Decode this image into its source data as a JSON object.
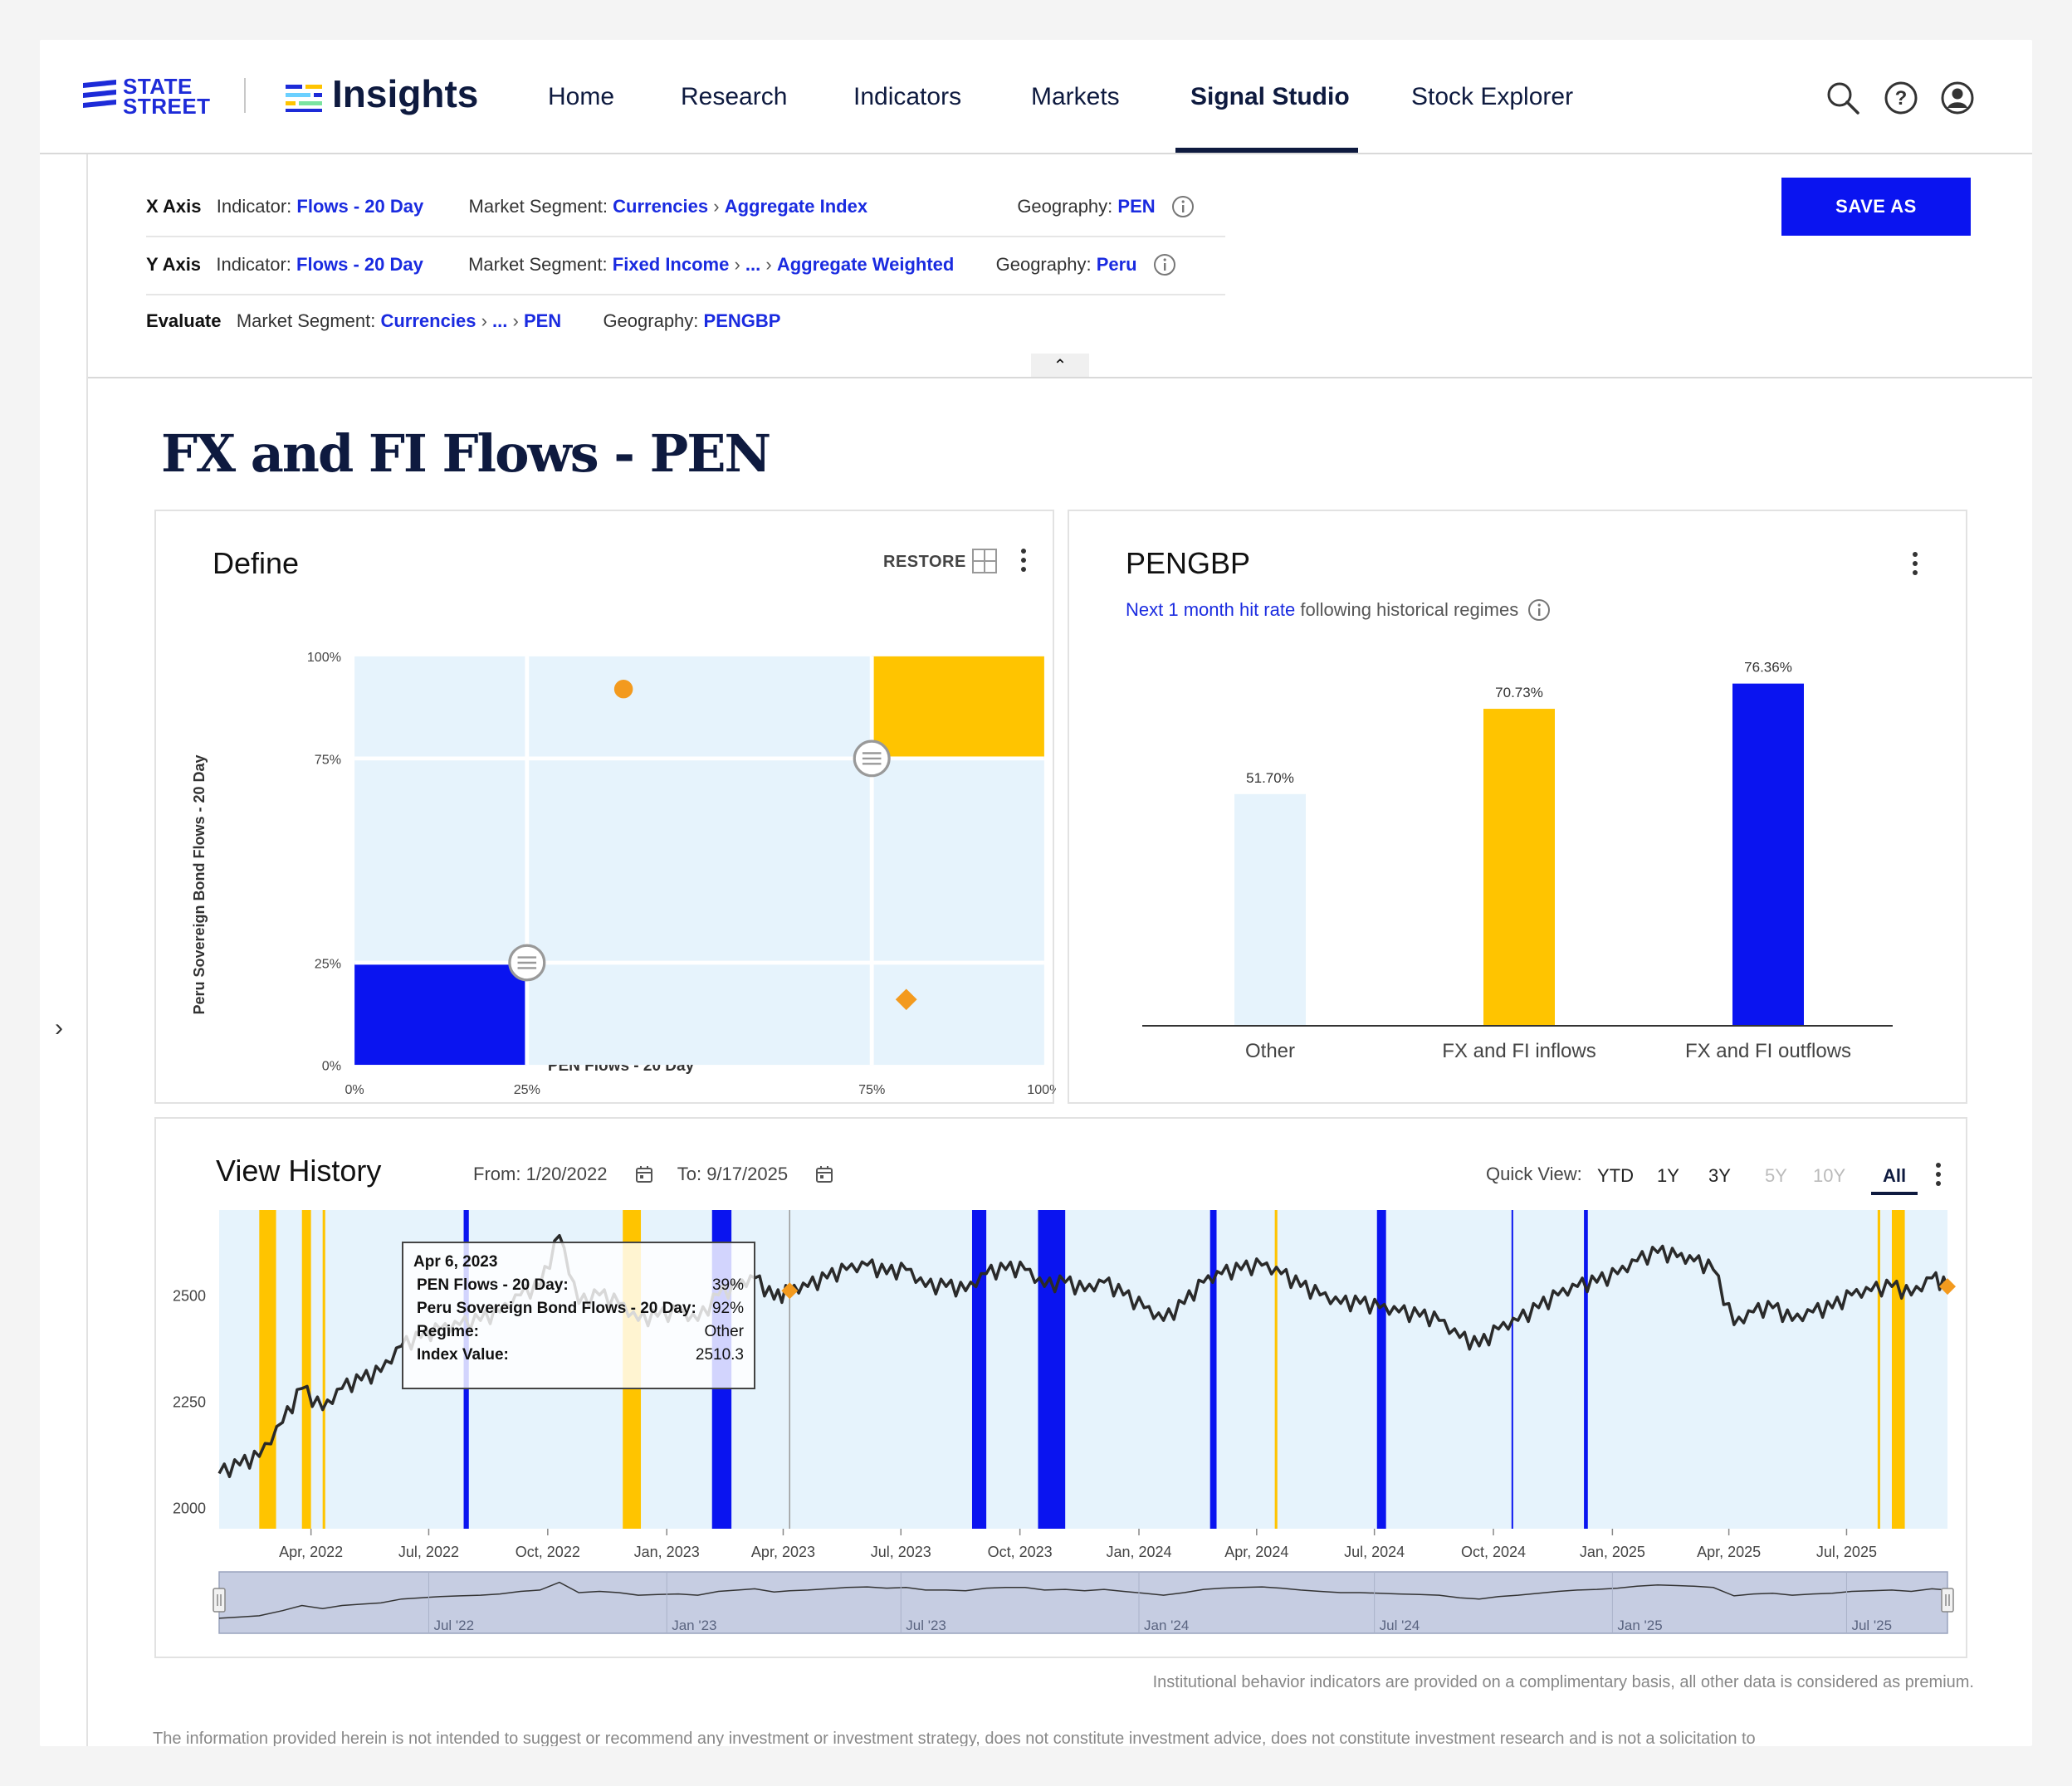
{
  "brand": {
    "company": [
      "STATE",
      "STREET"
    ],
    "product": "Insights"
  },
  "nav": {
    "items": [
      "Home",
      "Research",
      "Indicators",
      "Markets",
      "Signal Studio",
      "Stock Explorer"
    ],
    "active": "Signal Studio"
  },
  "config": {
    "x_axis": {
      "key": "X Axis",
      "indicator_label": "Indicator:",
      "indicator": "Flows - 20 Day",
      "segment_label": "Market Segment:",
      "segment": [
        "Currencies",
        "Aggregate Index"
      ],
      "geo_label": "Geography:",
      "geo": "PEN"
    },
    "y_axis": {
      "key": "Y Axis",
      "indicator_label": "Indicator:",
      "indicator": "Flows - 20 Day",
      "segment_label": "Market Segment:",
      "segment": [
        "Fixed Income",
        "...",
        "Aggregate Weighted"
      ],
      "geo_label": "Geography:",
      "geo": "Peru"
    },
    "evaluate": {
      "key": "Evaluate",
      "segment_label": "Market Segment:",
      "segment": [
        "Currencies",
        "...",
        "PEN"
      ],
      "geo_label": "Geography:",
      "geo": "PENGBP"
    },
    "save_label": "SAVE AS",
    "collapse_glyph": "⌃"
  },
  "page_title": "FX and FI Flows - PEN",
  "define": {
    "title": "Define",
    "restore_label": "RESTORE",
    "ylabel": "Peru Sovereign Bond Flows - 20 Day",
    "xlabel": "PEN Flows - 20 Day",
    "y_ticks": [
      "100%",
      "75%",
      "25%",
      "0%"
    ],
    "x_ticks": [
      "0%",
      "25%",
      "75%",
      "100%"
    ],
    "thresholds": {
      "x_low": 25,
      "x_high": 75,
      "y_low": 25,
      "y_high": 75
    },
    "points": [
      {
        "x": 39,
        "y": 92,
        "shape": "circle"
      },
      {
        "x": 80,
        "y": 16,
        "shape": "diamond"
      }
    ],
    "colors": {
      "inflow": "#ffc400",
      "outflow": "#0a14f0",
      "other": "#e6f3fc",
      "point": "#f39a1e"
    }
  },
  "hitrate": {
    "title": "PENGBP",
    "subtitle_link": "Next 1 month hit rate",
    "subtitle_rest": "following historical regimes"
  },
  "chart_data": [
    {
      "type": "bar",
      "categories": [
        "Other",
        "FX and FI inflows",
        "FX and FI outflows"
      ],
      "values": [
        51.7,
        70.73,
        76.36
      ],
      "value_labels": [
        "51.70%",
        "70.73%",
        "76.36%"
      ],
      "colors": [
        "#e6f3fc",
        "#ffc400",
        "#0a14f0"
      ],
      "ylim": [
        0,
        100
      ]
    },
    {
      "type": "line",
      "title": "View History",
      "y_ticks": [
        2000,
        2250,
        2500
      ],
      "ylim": [
        1950,
        2700
      ],
      "x_ticks": [
        "Apr, 2022",
        "Jul, 2022",
        "Oct, 2022",
        "Jan, 2023",
        "Apr, 2023",
        "Jul, 2023",
        "Oct, 2023",
        "Jan, 2024",
        "Apr, 2024",
        "Jul, 2024",
        "Oct, 2024",
        "Jan, 2025",
        "Apr, 2025",
        "Jul, 2025"
      ],
      "xlim": [
        "2022-01-20",
        "2025-09-17"
      ],
      "series": [
        {
          "x": [
            "2022-01-20",
            "2022-02-05",
            "2022-02-20",
            "2022-03-10",
            "2022-03-25",
            "2022-04-10",
            "2022-04-25",
            "2022-05-10",
            "2022-05-25",
            "2022-06-10",
            "2022-06-25",
            "2022-07-10",
            "2022-07-25",
            "2022-08-10",
            "2022-08-25",
            "2022-09-10",
            "2022-09-25",
            "2022-10-10",
            "2022-10-25",
            "2022-11-10",
            "2022-11-25",
            "2022-12-10",
            "2022-12-25",
            "2023-01-10",
            "2023-01-25",
            "2023-02-10",
            "2023-02-25",
            "2023-03-10",
            "2023-03-25",
            "2023-04-06",
            "2023-04-20",
            "2023-05-05",
            "2023-05-20",
            "2023-06-05",
            "2023-06-20",
            "2023-07-05",
            "2023-07-20",
            "2023-08-05",
            "2023-08-20",
            "2023-09-05",
            "2023-09-20",
            "2023-10-05",
            "2023-10-20",
            "2023-11-05",
            "2023-11-20",
            "2023-12-05",
            "2023-12-20",
            "2024-01-05",
            "2024-01-20",
            "2024-02-05",
            "2024-02-20",
            "2024-03-05",
            "2024-03-20",
            "2024-04-05",
            "2024-04-20",
            "2024-05-05",
            "2024-05-20",
            "2024-06-05",
            "2024-06-20",
            "2024-07-05",
            "2024-07-20",
            "2024-08-05",
            "2024-08-20",
            "2024-09-05",
            "2024-09-20",
            "2024-10-05",
            "2024-10-20",
            "2024-11-05",
            "2024-11-20",
            "2024-12-05",
            "2024-12-20",
            "2025-01-05",
            "2025-01-20",
            "2025-02-05",
            "2025-02-20",
            "2025-03-05",
            "2025-03-20",
            "2025-04-05",
            "2025-04-20",
            "2025-05-05",
            "2025-05-20",
            "2025-06-05",
            "2025-06-20",
            "2025-07-05",
            "2025-07-20",
            "2025-08-05",
            "2025-08-20",
            "2025-09-05",
            "2025-09-17"
          ],
          "values": [
            2080,
            2100,
            2120,
            2200,
            2280,
            2230,
            2280,
            2300,
            2320,
            2380,
            2400,
            2420,
            2430,
            2440,
            2460,
            2500,
            2520,
            2640,
            2480,
            2500,
            2480,
            2440,
            2450,
            2460,
            2440,
            2500,
            2520,
            2540,
            2490,
            2510,
            2520,
            2540,
            2560,
            2570,
            2550,
            2560,
            2520,
            2520,
            2510,
            2550,
            2560,
            2560,
            2520,
            2530,
            2510,
            2530,
            2500,
            2470,
            2440,
            2480,
            2530,
            2550,
            2560,
            2570,
            2550,
            2520,
            2500,
            2480,
            2480,
            2470,
            2460,
            2450,
            2440,
            2400,
            2380,
            2420,
            2440,
            2470,
            2500,
            2520,
            2530,
            2550,
            2580,
            2600,
            2590,
            2580,
            2560,
            2430,
            2460,
            2470,
            2440,
            2460,
            2470,
            2500,
            2510,
            2520,
            2500,
            2540,
            2520
          ]
        }
      ],
      "regimes": [
        {
          "start": "2022-02-20",
          "end": "2022-03-05",
          "regime": "inflow"
        },
        {
          "start": "2022-03-25",
          "end": "2022-04-01",
          "regime": "inflow"
        },
        {
          "start": "2022-04-10",
          "end": "2022-04-12",
          "regime": "inflow"
        },
        {
          "start": "2022-07-28",
          "end": "2022-08-01",
          "regime": "outflow"
        },
        {
          "start": "2022-11-28",
          "end": "2022-12-12",
          "regime": "inflow"
        },
        {
          "start": "2023-02-05",
          "end": "2023-02-20",
          "regime": "outflow"
        },
        {
          "start": "2023-08-25",
          "end": "2023-09-05",
          "regime": "outflow"
        },
        {
          "start": "2023-10-15",
          "end": "2023-11-05",
          "regime": "outflow"
        },
        {
          "start": "2024-02-25",
          "end": "2024-03-01",
          "regime": "outflow"
        },
        {
          "start": "2024-04-15",
          "end": "2024-04-17",
          "regime": "inflow"
        },
        {
          "start": "2024-07-03",
          "end": "2024-07-10",
          "regime": "outflow"
        },
        {
          "start": "2024-10-15",
          "end": "2024-10-16",
          "regime": "outflow"
        },
        {
          "start": "2024-12-10",
          "end": "2024-12-13",
          "regime": "outflow"
        },
        {
          "start": "2025-07-25",
          "end": "2025-07-27",
          "regime": "inflow"
        },
        {
          "start": "2025-08-05",
          "end": "2025-08-15",
          "regime": "inflow"
        }
      ]
    }
  ],
  "history": {
    "from_label": "From:",
    "from": "1/20/2022",
    "to_label": "To:",
    "to": "9/17/2025",
    "quick_view_label": "Quick View:",
    "quick_views": [
      "YTD",
      "1Y",
      "3Y",
      "5Y",
      "10Y",
      "All"
    ],
    "quick_view_active": "All",
    "navigator_ticks": [
      "Jul '22",
      "Jan '23",
      "Jul '23",
      "Jan '24",
      "Jul '24",
      "Jan '25",
      "Jul '25"
    ],
    "tooltip": {
      "date": "Apr 6, 2023",
      "rows": [
        {
          "label": "PEN Flows - 20 Day:",
          "value": "39%"
        },
        {
          "label": "Peru Sovereign Bond Flows - 20 Day:",
          "value": "92%"
        },
        {
          "label": "Regime:",
          "value": "Other"
        },
        {
          "label": "Index Value:",
          "value": "2510.3"
        }
      ]
    }
  },
  "footer": {
    "note": "Institutional behavior indicators are provided on a complimentary basis, all other data is considered as premium.",
    "disclaimer": "The information provided herein is not intended to suggest or recommend any investment or investment strategy, does not constitute investment advice, does not constitute investment research and is not a solicitation to"
  }
}
